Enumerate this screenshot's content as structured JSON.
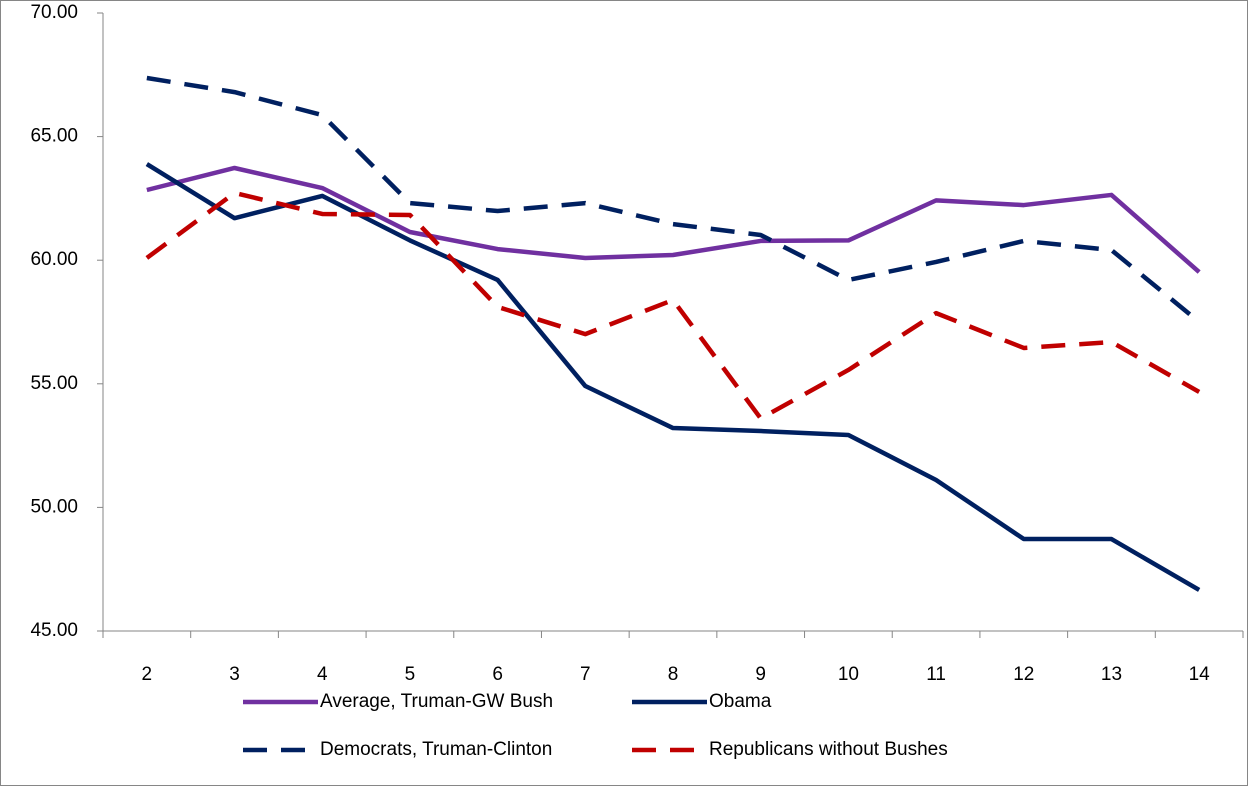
{
  "chart_data": {
    "type": "line",
    "categories": [
      "2",
      "3",
      "4",
      "5",
      "6",
      "7",
      "8",
      "9",
      "10",
      "11",
      "12",
      "13",
      "14"
    ],
    "series": [
      {
        "name": "Average, Truman-GW Bush",
        "color": "#7030a0",
        "linestyle": "solid",
        "values": [
          62.84,
          63.73,
          62.92,
          61.14,
          60.45,
          60.09,
          60.21,
          60.78,
          60.8,
          62.42,
          62.23,
          62.64,
          59.52
        ]
      },
      {
        "name": "Obama",
        "color": "#002060",
        "linestyle": "solid",
        "values": [
          63.89,
          61.7,
          62.6,
          60.8,
          59.2,
          54.91,
          53.21,
          53.09,
          52.93,
          51.11,
          48.72,
          48.72,
          46.66
        ]
      },
      {
        "name": "Democrats, Truman-Clinton",
        "color": "#002060",
        "linestyle": "dashed",
        "values": [
          67.37,
          66.8,
          65.87,
          62.31,
          61.99,
          62.31,
          61.46,
          61.02,
          59.2,
          59.93,
          60.78,
          60.41,
          57.5
        ]
      },
      {
        "name": "Republicans without Bushes",
        "color": "#c00000",
        "linestyle": "dashed",
        "values": [
          60.09,
          62.72,
          61.87,
          61.83,
          58.11,
          57.01,
          58.39,
          53.6,
          55.56,
          57.86,
          56.45,
          56.69,
          54.67
        ]
      }
    ],
    "ylim": [
      45,
      70
    ],
    "yticks": [
      {
        "value": 45,
        "label": "45.00"
      },
      {
        "value": 50,
        "label": "50.00"
      },
      {
        "value": 55,
        "label": "55.00"
      },
      {
        "value": 60,
        "label": "60.00"
      },
      {
        "value": 65,
        "label": "65.00"
      },
      {
        "value": 70,
        "label": "70.00"
      }
    ],
    "grid": false,
    "legend": "bottom"
  }
}
